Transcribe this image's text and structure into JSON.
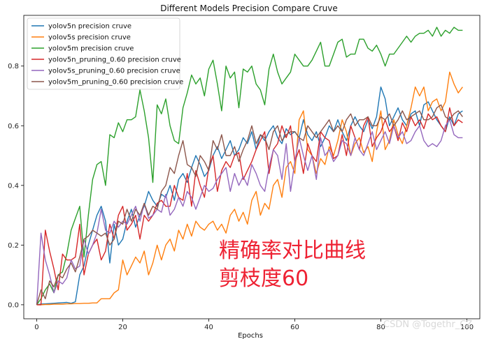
{
  "chart_data": {
    "type": "line",
    "title": "Different Models Precision Compare Cruve",
    "xlabel": "Epochs",
    "ylabel": "",
    "xlim": [
      -3,
      103
    ],
    "ylim": [
      -0.047,
      0.97
    ],
    "xticks": [
      0,
      20,
      40,
      60,
      80,
      100
    ],
    "yticks": [
      0.0,
      0.2,
      0.4,
      0.6,
      0.8
    ],
    "ytick_labels": [
      "0.0",
      "0.2",
      "0.4",
      "0.6",
      "0.8"
    ],
    "legend_position": "upper-left",
    "series": [
      {
        "name": "yolov5n precision cruve",
        "color": "#1f77b4",
        "values": [
          0.0,
          0.002,
          0.003,
          0.004,
          0.005,
          0.006,
          0.007,
          0.008,
          0.005,
          0.01,
          0.1,
          0.13,
          0.2,
          0.25,
          0.3,
          0.33,
          0.28,
          0.14,
          0.27,
          0.2,
          0.22,
          0.28,
          0.32,
          0.26,
          0.3,
          0.33,
          0.38,
          0.35,
          0.33,
          0.37,
          0.36,
          0.4,
          0.35,
          0.42,
          0.44,
          0.41,
          0.46,
          0.5,
          0.47,
          0.43,
          0.45,
          0.5,
          0.53,
          0.49,
          0.52,
          0.55,
          0.5,
          0.52,
          0.56,
          0.54,
          0.58,
          0.52,
          0.57,
          0.55,
          0.58,
          0.6,
          0.56,
          0.54,
          0.59,
          0.57,
          0.58,
          0.56,
          0.62,
          0.57,
          0.55,
          0.58,
          0.53,
          0.56,
          0.6,
          0.58,
          0.62,
          0.58,
          0.55,
          0.6,
          0.63,
          0.6,
          0.58,
          0.62,
          0.59,
          0.63,
          0.73,
          0.69,
          0.6,
          0.63,
          0.66,
          0.62,
          0.6,
          0.64,
          0.65,
          0.6,
          0.67,
          0.68,
          0.65,
          0.62,
          0.6,
          0.58,
          0.63,
          0.6,
          0.64,
          0.65
        ]
      },
      {
        "name": "yolov5s precision cruve",
        "color": "#ff7f0e",
        "values": [
          0.0,
          0.0,
          0.001,
          0.001,
          0.002,
          0.002,
          0.002,
          0.003,
          0.003,
          0.004,
          0.004,
          0.005,
          0.005,
          0.006,
          0.006,
          0.02,
          0.02,
          0.02,
          0.04,
          0.05,
          0.15,
          0.1,
          0.13,
          0.16,
          0.14,
          0.18,
          0.1,
          0.14,
          0.2,
          0.15,
          0.2,
          0.22,
          0.18,
          0.25,
          0.22,
          0.27,
          0.23,
          0.28,
          0.26,
          0.25,
          0.27,
          0.28,
          0.25,
          0.27,
          0.24,
          0.3,
          0.32,
          0.28,
          0.31,
          0.27,
          0.35,
          0.38,
          0.3,
          0.34,
          0.32,
          0.4,
          0.42,
          0.36,
          0.46,
          0.48,
          0.44,
          0.62,
          0.65,
          0.52,
          0.5,
          0.44,
          0.49,
          0.47,
          0.53,
          0.5,
          0.55,
          0.62,
          0.58,
          0.5,
          0.54,
          0.56,
          0.51,
          0.53,
          0.48,
          0.58,
          0.65,
          0.52,
          0.55,
          0.62,
          0.57,
          0.54,
          0.6,
          0.66,
          0.73,
          0.7,
          0.73,
          0.65,
          0.68,
          0.69,
          0.65,
          0.68,
          0.78,
          0.74,
          0.71,
          0.73
        ]
      },
      {
        "name": "yolov5m precision cruve",
        "color": "#2ca02c",
        "values": [
          0.0,
          0.02,
          0.05,
          0.07,
          0.04,
          0.1,
          0.11,
          0.17,
          0.25,
          0.29,
          0.33,
          0.16,
          0.3,
          0.42,
          0.47,
          0.48,
          0.4,
          0.57,
          0.56,
          0.61,
          0.58,
          0.62,
          0.62,
          0.63,
          0.72,
          0.65,
          0.56,
          0.41,
          0.67,
          0.64,
          0.69,
          0.6,
          0.55,
          0.54,
          0.66,
          0.71,
          0.77,
          0.74,
          0.76,
          0.7,
          0.79,
          0.82,
          0.74,
          0.65,
          0.8,
          0.76,
          0.78,
          0.66,
          0.79,
          0.78,
          0.8,
          0.74,
          0.72,
          0.67,
          0.79,
          0.84,
          0.78,
          0.74,
          0.76,
          0.78,
          0.84,
          0.82,
          0.8,
          0.8,
          0.82,
          0.85,
          0.88,
          0.8,
          0.8,
          0.84,
          0.88,
          0.89,
          0.83,
          0.84,
          0.84,
          0.89,
          0.89,
          0.86,
          0.85,
          0.87,
          0.84,
          0.8,
          0.84,
          0.84,
          0.86,
          0.88,
          0.9,
          0.88,
          0.9,
          0.91,
          0.91,
          0.92,
          0.9,
          0.93,
          0.9,
          0.92,
          0.91,
          0.93,
          0.92,
          0.92
        ]
      },
      {
        "name": "yolov5n_pruning_0.60 precision cruve",
        "color": "#d62728",
        "values": [
          0.0,
          0.0,
          0.25,
          0.18,
          0.12,
          0.05,
          0.17,
          0.15,
          0.15,
          0.16,
          0.27,
          0.1,
          0.17,
          0.2,
          0.22,
          0.15,
          0.18,
          0.27,
          0.22,
          0.3,
          0.33,
          0.25,
          0.27,
          0.3,
          0.22,
          0.3,
          0.28,
          0.3,
          0.34,
          0.35,
          0.33,
          0.33,
          0.4,
          0.36,
          0.35,
          0.44,
          0.33,
          0.45,
          0.4,
          0.36,
          0.46,
          0.5,
          0.38,
          0.45,
          0.48,
          0.46,
          0.5,
          0.51,
          0.42,
          0.45,
          0.48,
          0.52,
          0.55,
          0.58,
          0.44,
          0.52,
          0.54,
          0.6,
          0.56,
          0.6,
          0.48,
          0.52,
          0.44,
          0.54,
          0.5,
          0.48,
          0.58,
          0.56,
          0.55,
          0.49,
          0.5,
          0.57,
          0.5,
          0.6,
          0.56,
          0.52,
          0.6,
          0.63,
          0.53,
          0.56,
          0.58,
          0.62,
          0.58,
          0.6,
          0.55,
          0.61,
          0.58,
          0.63,
          0.6,
          0.62,
          0.59,
          0.64,
          0.62,
          0.63,
          0.6,
          0.58,
          0.66,
          0.6,
          0.62,
          0.61
        ]
      },
      {
        "name": "yolov5s_pruning_0.60 precision cruve",
        "color": "#9467bd",
        "values": [
          0.0,
          0.24,
          0.15,
          0.1,
          0.04,
          0.08,
          0.07,
          0.09,
          0.15,
          0.12,
          0.13,
          0.22,
          0.17,
          0.2,
          0.24,
          0.32,
          0.25,
          0.24,
          0.28,
          0.26,
          0.28,
          0.27,
          0.3,
          0.33,
          0.28,
          0.34,
          0.29,
          0.3,
          0.32,
          0.31,
          0.37,
          0.3,
          0.32,
          0.36,
          0.33,
          0.38,
          0.36,
          0.32,
          0.36,
          0.4,
          0.38,
          0.39,
          0.42,
          0.44,
          0.46,
          0.38,
          0.44,
          0.4,
          0.43,
          0.4,
          0.47,
          0.44,
          0.4,
          0.38,
          0.46,
          0.52,
          0.5,
          0.42,
          0.54,
          0.38,
          0.48,
          0.56,
          0.5,
          0.45,
          0.5,
          0.42,
          0.56,
          0.5,
          0.52,
          0.48,
          0.5,
          0.55,
          0.54,
          0.5,
          0.56,
          0.52,
          0.5,
          0.54,
          0.58,
          0.52,
          0.55,
          0.58,
          0.54,
          0.6,
          0.56,
          0.58,
          0.54,
          0.55,
          0.58,
          0.6,
          0.55,
          0.53,
          0.54,
          0.53,
          0.55,
          0.6,
          0.62,
          0.57,
          0.56,
          0.56
        ]
      },
      {
        "name": "yolov5m_pruning_0.60 precision cruve",
        "color": "#8c564b",
        "values": [
          0.0,
          0.05,
          0.02,
          0.08,
          0.06,
          0.1,
          0.09,
          0.12,
          0.14,
          0.11,
          0.16,
          0.22,
          0.23,
          0.25,
          0.24,
          0.23,
          0.24,
          0.2,
          0.22,
          0.28,
          0.27,
          0.32,
          0.28,
          0.32,
          0.3,
          0.34,
          0.3,
          0.33,
          0.32,
          0.38,
          0.4,
          0.46,
          0.44,
          0.5,
          0.55,
          0.47,
          0.46,
          0.43,
          0.5,
          0.48,
          0.45,
          0.55,
          0.52,
          0.57,
          0.5,
          0.5,
          0.53,
          0.48,
          0.52,
          0.55,
          0.6,
          0.54,
          0.57,
          0.56,
          0.52,
          0.58,
          0.6,
          0.55,
          0.57,
          0.58,
          0.58,
          0.56,
          0.55,
          0.6,
          0.58,
          0.56,
          0.58,
          0.6,
          0.62,
          0.58,
          0.6,
          0.58,
          0.62,
          0.64,
          0.6,
          0.62,
          0.62,
          0.63,
          0.6,
          0.6,
          0.63,
          0.62,
          0.64,
          0.6,
          0.62,
          0.65,
          0.62,
          0.63,
          0.64,
          0.65,
          0.62,
          0.62,
          0.63,
          0.66,
          0.67,
          0.63,
          0.62,
          0.64,
          0.65,
          0.63
        ]
      }
    ]
  },
  "annotation": {
    "line1": "精确率对比曲线",
    "line2": "剪枝度60"
  },
  "watermark": "CSDN @Togethr_CZ"
}
